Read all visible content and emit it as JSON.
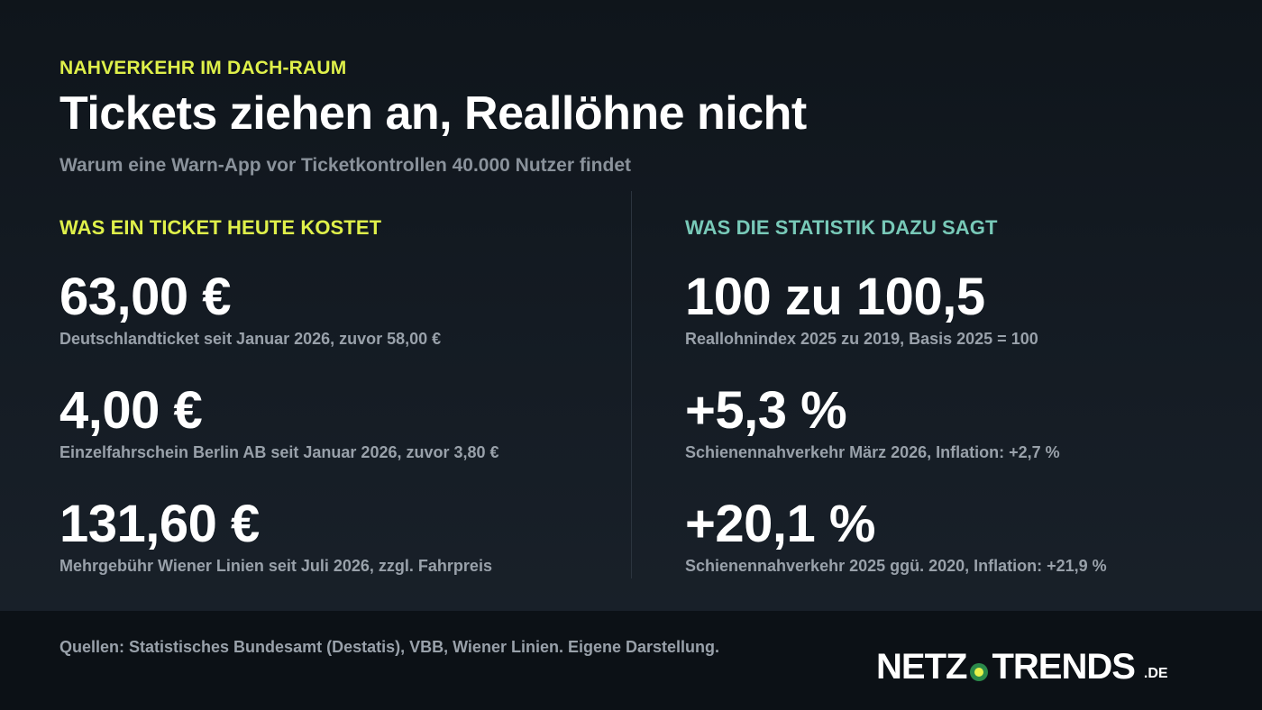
{
  "colors": {
    "accent_yellow": "#dff04a",
    "accent_teal": "#78c9b8",
    "muted_text": "#99a1aa",
    "background": "#141b23",
    "footer_background": "#0c1116"
  },
  "header": {
    "eyebrow": "NAHVERKEHR IM DACH-RAUM",
    "title": "Tickets ziehen an, Reallöhne nicht",
    "subtitle": "Warum eine Warn-App vor Ticketkontrollen 40.000 Nutzer findet"
  },
  "left": {
    "heading": "WAS EIN TICKET HEUTE KOSTET",
    "stats": [
      {
        "value": "63,00 €",
        "desc": "Deutschlandticket seit Januar 2026, zuvor 58,00 €"
      },
      {
        "value": "4,00 €",
        "desc": "Einzelfahrschein Berlin AB seit Januar 2026, zuvor 3,80 €"
      },
      {
        "value": "131,60 €",
        "desc": "Mehrgebühr Wiener Linien seit Juli 2026, zzgl. Fahrpreis"
      }
    ]
  },
  "right": {
    "heading": "WAS DIE STATISTIK DAZU SAGT",
    "stats": [
      {
        "value": "100 zu 100,5",
        "desc": "Reallohnindex 2025 zu 2019, Basis 2025 = 100"
      },
      {
        "value": "+5,3 %",
        "desc": "Schienennahverkehr März 2026, Inflation: +2,7 %"
      },
      {
        "value": "+20,1 %",
        "desc": "Schienennahverkehr 2025 ggü. 2020, Inflation: +21,9 %"
      }
    ]
  },
  "footer": {
    "sources": "Quellen: Statistisches Bundesamt (Destatis), VBB, Wiener Linien. Eigene Darstellung.",
    "logo_left": "NETZ",
    "logo_right": "TRENDS",
    "logo_tld": ".DE"
  }
}
